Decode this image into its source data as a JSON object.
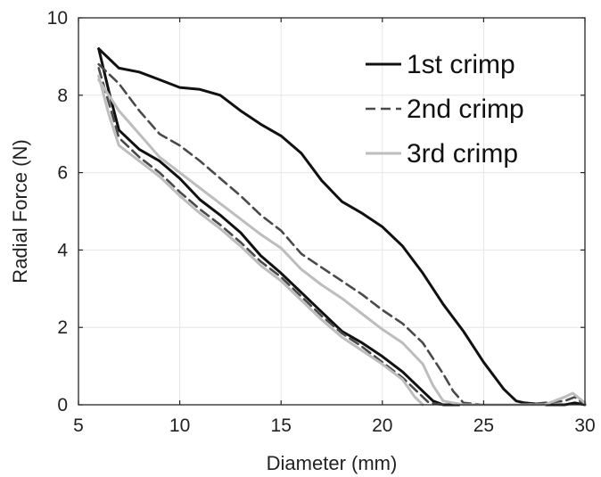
{
  "chart_data": {
    "type": "line",
    "title": "",
    "xlabel": "Diameter (mm)",
    "ylabel": "Radial Force (N)",
    "xlim": [
      5,
      30
    ],
    "ylim": [
      0,
      10
    ],
    "xticks": [
      5,
      10,
      15,
      20,
      25,
      30
    ],
    "yticks": [
      0,
      2,
      4,
      6,
      8,
      10
    ],
    "grid": true,
    "legend_position": "top-right",
    "series": [
      {
        "name": "1st crimp",
        "color": "#111111",
        "style": "solid",
        "loading": [
          [
            6.0,
            9.2
          ],
          [
            7.0,
            8.7
          ],
          [
            8.0,
            8.6
          ],
          [
            9.0,
            8.4
          ],
          [
            10.0,
            8.2
          ],
          [
            11.0,
            8.15
          ],
          [
            12.0,
            8.0
          ],
          [
            13.0,
            7.6
          ],
          [
            14.0,
            7.25
          ],
          [
            15.0,
            6.95
          ],
          [
            16.0,
            6.5
          ],
          [
            17.0,
            5.8
          ],
          [
            18.0,
            5.25
          ],
          [
            19.0,
            4.95
          ],
          [
            20.0,
            4.6
          ],
          [
            21.0,
            4.1
          ],
          [
            22.0,
            3.4
          ],
          [
            23.0,
            2.6
          ],
          [
            24.0,
            1.9
          ],
          [
            25.0,
            1.1
          ],
          [
            26.0,
            0.4
          ],
          [
            26.6,
            0.1
          ],
          [
            27.0,
            0.05
          ],
          [
            28.0,
            0.0
          ],
          [
            29.0,
            0.0
          ],
          [
            29.5,
            0.05
          ],
          [
            30.0,
            0.0
          ]
        ],
        "unloading": [
          [
            6.0,
            9.2
          ],
          [
            6.5,
            8.1
          ],
          [
            7.0,
            7.1
          ],
          [
            8.0,
            6.6
          ],
          [
            9.0,
            6.3
          ],
          [
            10.0,
            5.85
          ],
          [
            11.0,
            5.3
          ],
          [
            12.0,
            4.9
          ],
          [
            13.0,
            4.45
          ],
          [
            14.0,
            3.85
          ],
          [
            15.0,
            3.4
          ],
          [
            16.0,
            2.9
          ],
          [
            17.0,
            2.4
          ],
          [
            18.0,
            1.9
          ],
          [
            19.0,
            1.6
          ],
          [
            20.0,
            1.25
          ],
          [
            21.0,
            0.85
          ],
          [
            22.0,
            0.35
          ],
          [
            22.5,
            0.1
          ],
          [
            23.0,
            0.0
          ],
          [
            23.8,
            0.0
          ]
        ]
      },
      {
        "name": "2nd crimp",
        "color": "#4a4a4a",
        "style": "dashed",
        "loading": [
          [
            6.0,
            8.8
          ],
          [
            7.0,
            8.3
          ],
          [
            8.0,
            7.6
          ],
          [
            9.0,
            7.0
          ],
          [
            10.0,
            6.7
          ],
          [
            11.0,
            6.3
          ],
          [
            12.0,
            5.85
          ],
          [
            13.0,
            5.4
          ],
          [
            14.0,
            4.9
          ],
          [
            15.0,
            4.5
          ],
          [
            16.0,
            3.9
          ],
          [
            17.0,
            3.55
          ],
          [
            18.0,
            3.2
          ],
          [
            19.0,
            2.85
          ],
          [
            20.0,
            2.45
          ],
          [
            21.0,
            2.1
          ],
          [
            22.0,
            1.6
          ],
          [
            23.0,
            0.8
          ],
          [
            23.5,
            0.35
          ],
          [
            24.0,
            0.05
          ],
          [
            25.0,
            0.0
          ],
          [
            27.0,
            0.0
          ],
          [
            28.0,
            0.05
          ],
          [
            29.0,
            0.1
          ],
          [
            29.5,
            0.2
          ],
          [
            30.0,
            0.0
          ]
        ],
        "unloading": [
          [
            6.0,
            8.7
          ],
          [
            6.5,
            7.8
          ],
          [
            7.0,
            6.9
          ],
          [
            8.0,
            6.4
          ],
          [
            9.0,
            6.0
          ],
          [
            10.0,
            5.5
          ],
          [
            11.0,
            5.05
          ],
          [
            12.0,
            4.65
          ],
          [
            13.0,
            4.2
          ],
          [
            14.0,
            3.7
          ],
          [
            15.0,
            3.3
          ],
          [
            16.0,
            2.8
          ],
          [
            17.0,
            2.3
          ],
          [
            18.0,
            1.85
          ],
          [
            19.0,
            1.5
          ],
          [
            20.0,
            1.1
          ],
          [
            21.0,
            0.7
          ],
          [
            21.8,
            0.3
          ],
          [
            22.3,
            0.05
          ],
          [
            23.0,
            0.0
          ]
        ]
      },
      {
        "name": "3rd crimp",
        "color": "#bdbdbd",
        "style": "solid",
        "loading": [
          [
            6.0,
            8.4
          ],
          [
            7.0,
            7.6
          ],
          [
            8.0,
            7.0
          ],
          [
            9.0,
            6.4
          ],
          [
            10.0,
            6.0
          ],
          [
            11.0,
            5.6
          ],
          [
            12.0,
            5.2
          ],
          [
            13.0,
            4.8
          ],
          [
            14.0,
            4.4
          ],
          [
            15.0,
            4.05
          ],
          [
            16.0,
            3.5
          ],
          [
            17.0,
            3.1
          ],
          [
            18.0,
            2.75
          ],
          [
            19.0,
            2.35
          ],
          [
            20.0,
            1.95
          ],
          [
            21.0,
            1.6
          ],
          [
            22.0,
            1.05
          ],
          [
            22.5,
            0.5
          ],
          [
            23.0,
            0.1
          ],
          [
            24.0,
            0.0
          ],
          [
            26.0,
            0.0
          ],
          [
            28.0,
            0.0
          ],
          [
            29.0,
            0.2
          ],
          [
            29.4,
            0.3
          ],
          [
            30.0,
            0.05
          ]
        ],
        "unloading": [
          [
            6.0,
            8.5
          ],
          [
            6.5,
            7.5
          ],
          [
            7.0,
            6.7
          ],
          [
            8.0,
            6.3
          ],
          [
            9.0,
            5.9
          ],
          [
            10.0,
            5.4
          ],
          [
            11.0,
            4.95
          ],
          [
            12.0,
            4.55
          ],
          [
            13.0,
            4.1
          ],
          [
            14.0,
            3.6
          ],
          [
            15.0,
            3.2
          ],
          [
            16.0,
            2.7
          ],
          [
            17.0,
            2.2
          ],
          [
            18.0,
            1.75
          ],
          [
            19.0,
            1.4
          ],
          [
            20.0,
            1.05
          ],
          [
            21.0,
            0.65
          ],
          [
            21.6,
            0.2
          ],
          [
            22.0,
            0.0
          ]
        ]
      }
    ]
  }
}
